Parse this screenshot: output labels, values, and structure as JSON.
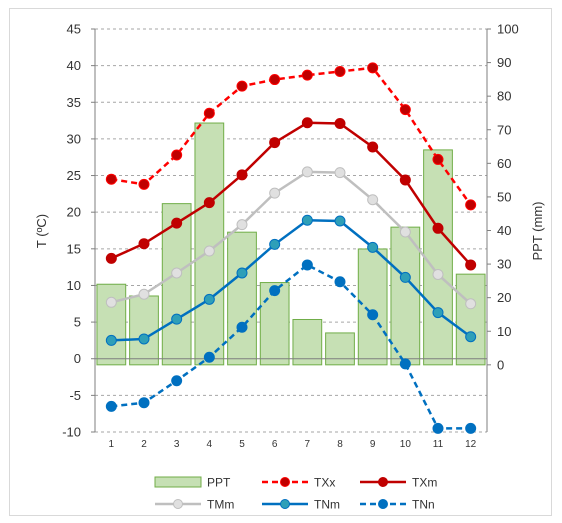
{
  "chart_data": {
    "type": "bar+line",
    "categories": [
      "1",
      "2",
      "3",
      "4",
      "5",
      "6",
      "7",
      "8",
      "9",
      "10",
      "11",
      "12"
    ],
    "ylabel_left": "T (ºC)",
    "ylabel_right": "PPT (mm)",
    "ylim_left": [
      -10,
      45
    ],
    "ylim_right": [
      -20,
      100
    ],
    "yticks_left": [
      "45",
      "40",
      "35",
      "30",
      "25",
      "20",
      "15",
      "10",
      "5",
      "0",
      "-5",
      "-10"
    ],
    "yticks_right": [
      "100",
      "90",
      "80",
      "70",
      "60",
      "50",
      "40",
      "30",
      "20",
      "10",
      "0"
    ],
    "grid": true,
    "legend_position": "bottom",
    "bars": {
      "name": "PPT",
      "axis": "right",
      "color": "#c6e0b4",
      "edge": "#70ad47",
      "values": [
        24,
        20.5,
        48,
        72,
        39.5,
        24.5,
        13.5,
        9.5,
        34.5,
        41,
        64,
        27
      ]
    },
    "series": [
      {
        "name": "TXx",
        "axis": "left",
        "color": "#ff0000",
        "marker": "#c00000",
        "dashed": true,
        "values": [
          24.5,
          23.8,
          27.8,
          33.5,
          37.2,
          38.1,
          38.7,
          39.2,
          39.7,
          34,
          27.2,
          21
        ]
      },
      {
        "name": "TXm",
        "axis": "left",
        "color": "#c00000",
        "marker": "#c00000",
        "dashed": false,
        "values": [
          13.7,
          15.7,
          18.5,
          21.3,
          25.1,
          29.5,
          32.2,
          32.1,
          28.9,
          24.4,
          17.8,
          12.8
        ]
      },
      {
        "name": "TMm",
        "axis": "left",
        "color": "#bfbfbf",
        "marker": "#e0e0e0",
        "dashed": false,
        "values": [
          7.7,
          8.8,
          11.7,
          14.7,
          18.3,
          22.6,
          25.5,
          25.4,
          21.7,
          17.3,
          11.5,
          7.5
        ]
      },
      {
        "name": "TNm",
        "axis": "left",
        "color": "#0070c0",
        "marker": "#2e9fb8",
        "dashed": false,
        "values": [
          2.5,
          2.7,
          5.4,
          8.1,
          11.7,
          15.6,
          18.9,
          18.8,
          15.2,
          11.1,
          6.3,
          3
        ]
      },
      {
        "name": "TNn",
        "axis": "left",
        "color": "#0070c0",
        "marker": "#0070c0",
        "dashed": true,
        "values": [
          -6.5,
          -6,
          -3,
          0.2,
          4.3,
          9.3,
          12.8,
          10.5,
          6,
          -0.7,
          -9.5,
          -9.5
        ]
      }
    ]
  }
}
